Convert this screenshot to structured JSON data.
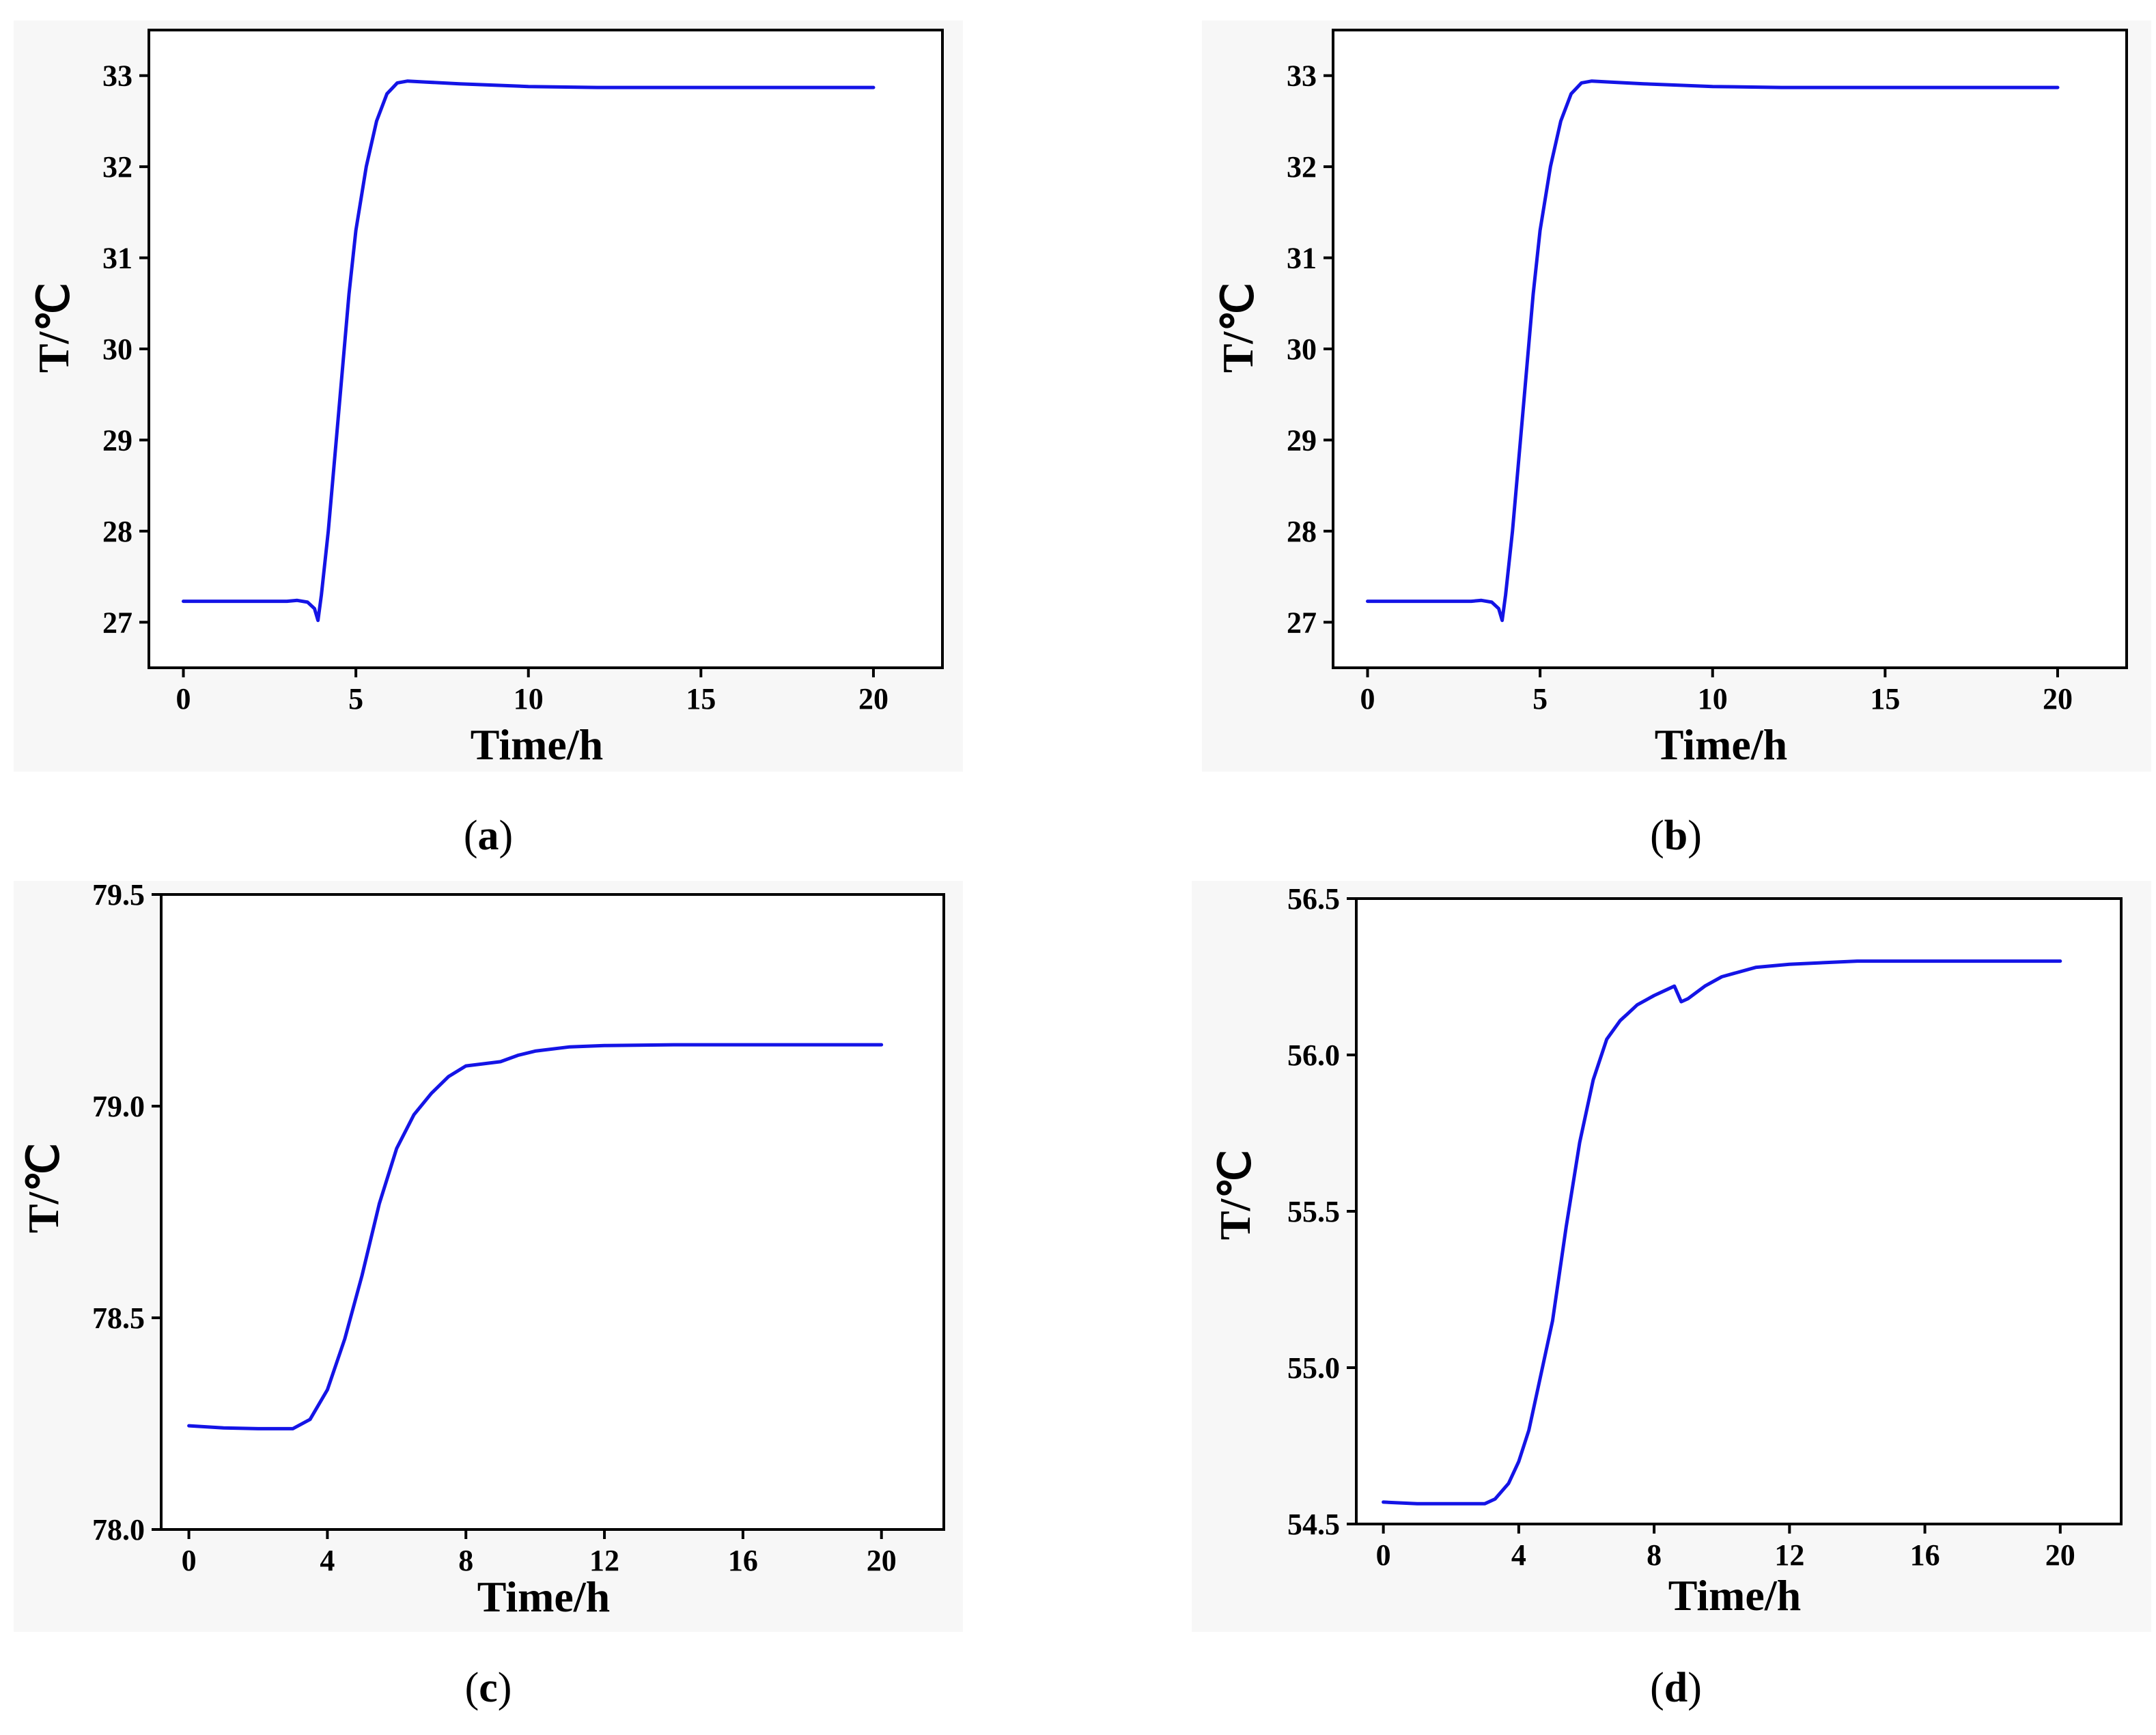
{
  "figure": {
    "line_color": "#1414e6",
    "background": "#f7f7f7"
  },
  "chart_data": [
    {
      "panel": "a",
      "caption_letter": "a",
      "type": "line",
      "xlabel": "Time/h",
      "ylabel": "T/℃",
      "xlim": [
        -1,
        22
      ],
      "ylim": [
        26.5,
        33.5
      ],
      "xticks": [
        "0",
        "5",
        "10",
        "15",
        "20"
      ],
      "yticks": [
        "27",
        "28",
        "29",
        "30",
        "31",
        "32",
        "33"
      ],
      "series": [
        {
          "name": "T",
          "x": [
            0,
            1,
            2,
            3,
            3.3,
            3.6,
            3.8,
            3.9,
            4.0,
            4.2,
            4.5,
            4.8,
            5.0,
            5.3,
            5.6,
            5.9,
            6.2,
            6.5,
            7,
            8,
            10,
            12,
            15,
            20
          ],
          "y": [
            27.23,
            27.23,
            27.23,
            27.23,
            27.24,
            27.22,
            27.15,
            27.02,
            27.3,
            28.0,
            29.3,
            30.6,
            31.3,
            32.0,
            32.5,
            32.8,
            32.92,
            32.94,
            32.93,
            32.91,
            32.88,
            32.87,
            32.87,
            32.87
          ]
        }
      ]
    },
    {
      "panel": "b",
      "caption_letter": "b",
      "type": "line",
      "xlabel": "Time/h",
      "ylabel": "T/℃",
      "xlim": [
        -1,
        22
      ],
      "ylim": [
        26.5,
        33.5
      ],
      "xticks": [
        "0",
        "5",
        "10",
        "15",
        "20"
      ],
      "yticks": [
        "27",
        "28",
        "29",
        "30",
        "31",
        "32",
        "33"
      ],
      "series": [
        {
          "name": "T",
          "x": [
            0,
            1,
            2,
            3,
            3.3,
            3.6,
            3.8,
            3.9,
            4.0,
            4.2,
            4.5,
            4.8,
            5.0,
            5.3,
            5.6,
            5.9,
            6.2,
            6.5,
            7,
            8,
            10,
            12,
            15,
            20
          ],
          "y": [
            27.23,
            27.23,
            27.23,
            27.23,
            27.24,
            27.22,
            27.15,
            27.02,
            27.3,
            28.0,
            29.3,
            30.6,
            31.3,
            32.0,
            32.5,
            32.8,
            32.92,
            32.94,
            32.93,
            32.91,
            32.88,
            32.87,
            32.87,
            32.87
          ]
        }
      ]
    },
    {
      "panel": "c",
      "caption_letter": "c",
      "type": "line",
      "xlabel": "Time/h",
      "ylabel": "T/℃",
      "xlim": [
        -0.8,
        21.8
      ],
      "ylim": [
        78.0,
        79.5
      ],
      "xticks": [
        "0",
        "4",
        "8",
        "12",
        "16",
        "20"
      ],
      "yticks": [
        "78.0",
        "78.5",
        "79.0",
        "79.5"
      ],
      "series": [
        {
          "name": "T",
          "x": [
            0,
            1,
            2,
            3,
            3.5,
            4,
            4.5,
            5,
            5.5,
            6,
            6.5,
            7,
            7.5,
            8,
            8.5,
            9,
            9.5,
            10,
            11,
            12,
            14,
            16,
            18,
            20
          ],
          "y": [
            78.245,
            78.24,
            78.238,
            78.238,
            78.26,
            78.33,
            78.45,
            78.6,
            78.77,
            78.9,
            78.98,
            79.03,
            79.07,
            79.095,
            79.1,
            79.105,
            79.12,
            79.13,
            79.14,
            79.143,
            79.145,
            79.145,
            79.145,
            79.145
          ]
        }
      ]
    },
    {
      "panel": "d",
      "caption_letter": "d",
      "type": "line",
      "xlabel": "Time/h",
      "ylabel": "T/℃",
      "xlim": [
        -0.8,
        21.8
      ],
      "ylim": [
        54.5,
        56.5
      ],
      "xticks": [
        "0",
        "4",
        "8",
        "12",
        "16",
        "20"
      ],
      "yticks": [
        "54.5",
        "55.0",
        "55.5",
        "56.0",
        "56.5"
      ],
      "series": [
        {
          "name": "T",
          "x": [
            0,
            1,
            2,
            3,
            3.3,
            3.7,
            4,
            4.3,
            4.6,
            5,
            5.4,
            5.8,
            6.2,
            6.6,
            7,
            7.1,
            7.2,
            7.5,
            8,
            8.4,
            8.6,
            8.8,
            9,
            9.5,
            10,
            11,
            12,
            13,
            14,
            16,
            18,
            20
          ],
          "y": [
            54.57,
            54.565,
            54.565,
            54.565,
            54.58,
            54.63,
            54.7,
            54.8,
            54.95,
            55.15,
            55.45,
            55.72,
            55.92,
            56.05,
            56.11,
            56.12,
            56.13,
            56.16,
            56.19,
            56.21,
            56.22,
            56.17,
            56.18,
            56.22,
            56.25,
            56.28,
            56.29,
            56.295,
            56.3,
            56.3,
            56.3,
            56.3
          ]
        }
      ]
    }
  ]
}
